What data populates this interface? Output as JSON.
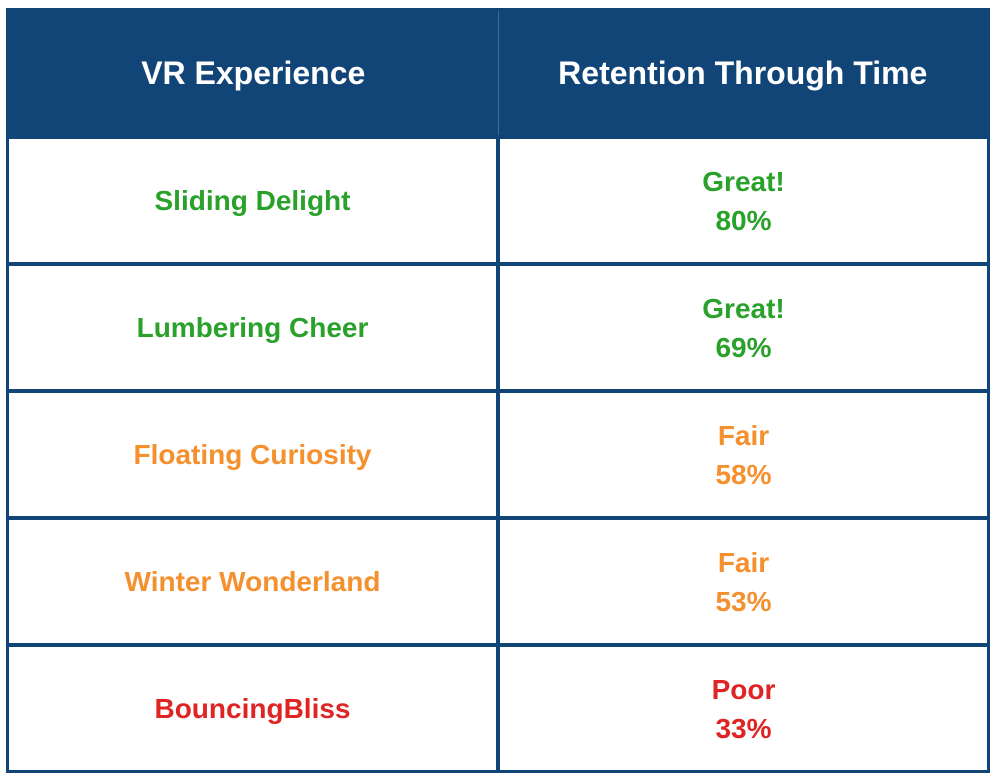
{
  "colors": {
    "header_bg": "#124577",
    "header_text": "#ffffff",
    "border": "#124577",
    "great": "#2aa12a",
    "fair": "#f4902e",
    "poor": "#de2524"
  },
  "table": {
    "headers": [
      "VR Experience",
      "Retention Through Time"
    ],
    "rows": [
      {
        "experience": "Sliding Delight",
        "rating": "Great!",
        "retention": "80%",
        "status": "great"
      },
      {
        "experience": "Lumbering Cheer",
        "rating": "Great!",
        "retention": "69%",
        "status": "great"
      },
      {
        "experience": "Floating Curiosity",
        "rating": "Fair",
        "retention": "58%",
        "status": "fair"
      },
      {
        "experience": "Winter Wonderland",
        "rating": "Fair",
        "retention": "53%",
        "status": "fair"
      },
      {
        "experience": "BouncingBliss",
        "rating": "Poor",
        "retention": "33%",
        "status": "poor"
      }
    ]
  }
}
